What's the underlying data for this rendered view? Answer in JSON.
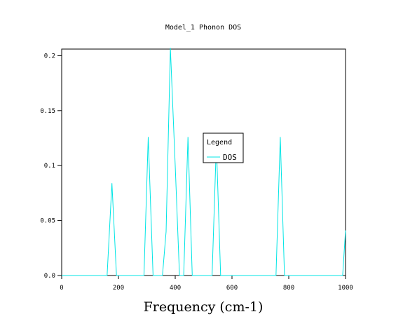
{
  "chart_data": {
    "type": "line",
    "title": "Model_1 Phonon DOS",
    "xlabel": "Frequency (cm-1)",
    "ylabel": "",
    "xlim": [
      0,
      1000
    ],
    "ylim": [
      0,
      0.206
    ],
    "xticks": [
      0,
      200,
      400,
      600,
      800,
      1000
    ],
    "xtick_labels": [
      "0",
      "200",
      "400",
      "600",
      "800",
      "1000"
    ],
    "yticks": [
      0,
      0.05,
      0.1,
      0.15,
      0.2
    ],
    "ytick_labels": [
      "0.0",
      "0.05",
      "0.1",
      "0.15",
      "0.2"
    ],
    "grid": false,
    "legend": {
      "title": "Legend",
      "position": "center-right"
    },
    "series": [
      {
        "name": "DOS",
        "color": "#00e5e5",
        "x": [
          0,
          160,
          177,
          193,
          290,
          305,
          322,
          355,
          368,
          383,
          400,
          415,
          430,
          445,
          460,
          530,
          545,
          560,
          755,
          770,
          785,
          990,
          1000
        ],
        "y": [
          0,
          0,
          0.084,
          0,
          0,
          0.126,
          0,
          0,
          0.04,
          0.207,
          0.1,
          0,
          0,
          0.126,
          0,
          0,
          0.12,
          0,
          0,
          0.126,
          0,
          0,
          0.041
        ]
      }
    ]
  }
}
